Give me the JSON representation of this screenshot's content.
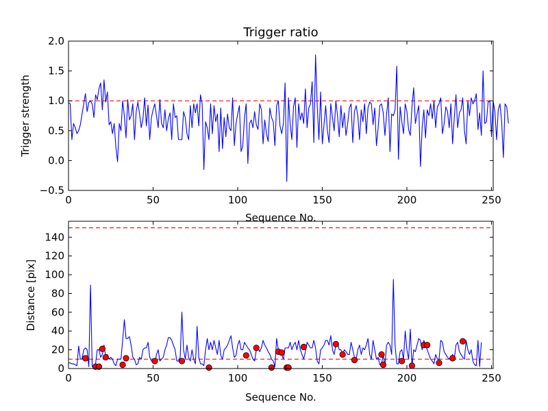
{
  "colors": {
    "line": "#0000ff",
    "threshold": "#ff0000",
    "marker": "#ff0000",
    "marker_edge": "#000000"
  },
  "chart_data": [
    {
      "type": "line",
      "title": "Trigger ratio",
      "xlabel": "Sequence No.",
      "ylabel": "Trigger strength",
      "xlim": [
        0,
        251
      ],
      "ylim": [
        -0.5,
        2.0
      ],
      "x_ticks": [
        0,
        50,
        100,
        150,
        200,
        250
      ],
      "x_tick_labels": [
        "0",
        "50",
        "100",
        "150",
        "200",
        "250"
      ],
      "y_ticks": [
        -0.5,
        0.0,
        0.5,
        1.0,
        1.5,
        2.0
      ],
      "y_tick_labels": [
        "−0.5",
        "0.0",
        "0.5",
        "1.0",
        "1.5",
        "2.0"
      ],
      "thresholds": [
        1.0
      ],
      "series": [
        {
          "name": "trigger strength",
          "x_start": 0,
          "values": [
            0.97,
            0.95,
            0.35,
            0.62,
            0.55,
            0.45,
            0.5,
            0.6,
            0.78,
            0.95,
            1.12,
            0.82,
            0.97,
            1.0,
            0.95,
            0.72,
            1.1,
            1.02,
            1.2,
            1.3,
            0.85,
            1.35,
            0.98,
            1.15,
            0.6,
            0.65,
            0.45,
            0.62,
            0.22,
            -0.02,
            0.62,
            0.5,
            1.0,
            0.75,
            0.38,
            1.02,
            0.68,
            0.75,
            0.95,
            0.35,
            0.82,
            0.98,
            0.78,
            0.55,
            0.7,
            1.05,
            0.58,
            0.93,
            0.35,
            0.72,
            0.85,
            0.95,
            0.75,
            0.55,
            1.02,
            0.62,
            0.55,
            0.85,
            0.5,
            0.7,
            0.8,
            0.35,
            0.95,
            0.72,
            0.75,
            0.35,
            0.35,
            0.35,
            0.82,
            0.72,
            0.45,
            0.35,
            0.92,
            0.55,
            0.95,
            0.8,
            0.95,
            0.58,
            1.1,
            0.95,
            -0.15,
            0.65,
            0.55,
            0.35,
            0.95,
            0.45,
            0.92,
            0.65,
            0.78,
            0.15,
            0.88,
            0.2,
            0.72,
            0.4,
            0.78,
            0.55,
            0.5,
            1.05,
            0.25,
            0.62,
            0.78,
            0.92,
            0.15,
            0.25,
            0.72,
            0.95,
            -0.05,
            0.62,
            0.68,
            0.55,
            0.82,
            0.6,
            0.52,
            0.95,
            0.85,
            0.28,
            0.68,
            0.45,
            0.32,
            0.88,
            0.72,
            0.65,
            0.25,
            0.92,
            1.0,
            0.58,
            0.45,
            0.62,
            1.3,
            -0.35,
            1.05,
            0.62,
            0.35,
            0.9,
            1.05,
            0.22,
            0.95,
            0.68,
            0.8,
            0.62,
            1.2,
            0.55,
            0.88,
            0.95,
            1.32,
            0.3,
            1.77,
            0.92,
            0.35,
            1.15,
            0.28,
            0.6,
            0.92,
            0.5,
            0.3,
            0.95,
            0.72,
            0.5,
            1.0,
            0.75,
            0.4,
            0.92,
            0.55,
            0.8,
            0.42,
            0.62,
            0.88,
            0.95,
            0.3,
            0.82,
            0.92,
            0.75,
            0.35,
            0.85,
            0.65,
            0.95,
            0.45,
            0.88,
            0.98,
            0.95,
            0.6,
            0.88,
            0.25,
            0.55,
            0.92,
            0.95,
            0.8,
            0.42,
            0.78,
            1.05,
            0.15,
            0.78,
            0.75,
            0.85,
            1.58,
            0.02,
            0.9,
            0.65,
            0.45,
            0.95,
            0.82,
            0.52,
            0.42,
            0.9,
            1.22,
            0.62,
            0.78,
            0.92,
            -0.1,
            0.55,
            0.85,
            0.38,
            0.85,
            0.75,
            0.95,
            0.7,
            1.0,
            0.55,
            0.9,
            0.95,
            1.05,
            0.45,
            0.62,
            0.9,
            0.82,
            0.55,
            0.95,
            0.28,
            0.72,
            1.1,
            0.55,
            0.8,
            0.85,
            1.05,
            0.5,
            0.28,
            1.0,
            0.75,
            1.05,
            0.95,
            1.0,
            1.12,
            0.52,
            0.8,
            0.42,
            1.5,
            0.62,
            0.65,
            0.98,
            1.0,
            0.4,
            1.0,
            0.82,
            0.35,
            0.85,
            0.95,
            0.65,
            0.05,
            0.95,
            0.9,
            0.62
          ]
        }
      ]
    },
    {
      "type": "line",
      "title": "",
      "xlabel": "Sequence No.",
      "ylabel": "Distance [pix]",
      "xlim": [
        0,
        251
      ],
      "ylim": [
        0,
        157
      ],
      "x_ticks": [
        0,
        50,
        100,
        150,
        200,
        250
      ],
      "x_tick_labels": [
        "0",
        "50",
        "100",
        "150",
        "200",
        "250"
      ],
      "y_ticks": [
        0,
        20,
        40,
        60,
        80,
        100,
        120,
        140
      ],
      "y_tick_labels": [
        "0",
        "20",
        "40",
        "60",
        "80",
        "100",
        "120",
        "140"
      ],
      "thresholds": [
        150,
        10
      ],
      "series": [
        {
          "name": "distance",
          "x_start": 0,
          "values": [
            6,
            6,
            5,
            5,
            4,
            3,
            24,
            10,
            10,
            20,
            22,
            20,
            2,
            89,
            2,
            2,
            5,
            20,
            20,
            12,
            15,
            25,
            12,
            15,
            10,
            12,
            10,
            5,
            3,
            10,
            10,
            10,
            30,
            52,
            32,
            32,
            34,
            25,
            12,
            10,
            4,
            5,
            12,
            10,
            20,
            22,
            22,
            28,
            12,
            8,
            8,
            5,
            15,
            20,
            8,
            10,
            12,
            20,
            25,
            33,
            33,
            30,
            25,
            20,
            8,
            8,
            12,
            60,
            20,
            10,
            25,
            12,
            8,
            20,
            10,
            5,
            45,
            12,
            5,
            5,
            3,
            20,
            32,
            20,
            28,
            20,
            30,
            22,
            15,
            30,
            14,
            10,
            20,
            22,
            25,
            30,
            35,
            22,
            12,
            14,
            25,
            30,
            20,
            20,
            28,
            25,
            22,
            20,
            15,
            10,
            8,
            20,
            22,
            18,
            22,
            30,
            25,
            22,
            18,
            15,
            10,
            8,
            2,
            32,
            20,
            18,
            15,
            10,
            22,
            22,
            22,
            28,
            20,
            25,
            28,
            20,
            30,
            20,
            15,
            10,
            18,
            28,
            25,
            22,
            22,
            30,
            22,
            8,
            5,
            20,
            22,
            25,
            30,
            30,
            25,
            35,
            20,
            15,
            25,
            28,
            20,
            20,
            15,
            20,
            18,
            15,
            15,
            28,
            20,
            12,
            10,
            20,
            25,
            15,
            22,
            20,
            25,
            32,
            15,
            10,
            30,
            20,
            10,
            12,
            4,
            5,
            14,
            4,
            25,
            28,
            25,
            15,
            95,
            25,
            5,
            5,
            18,
            20,
            10,
            40,
            20,
            10,
            42,
            2,
            20,
            18,
            25,
            32,
            30,
            20,
            30,
            25,
            20,
            15,
            10,
            8,
            5,
            15,
            10,
            10,
            30,
            28,
            18,
            15,
            12,
            10,
            12,
            15,
            10,
            25,
            28,
            18,
            15,
            12,
            10,
            30,
            20,
            15,
            20,
            8,
            4,
            3,
            30,
            2,
            28
          ]
        },
        {
          "name": "flagged",
          "type": "scatter",
          "x": [
            10,
            16,
            18,
            20,
            22,
            32,
            34,
            51,
            67,
            83,
            105,
            111,
            120,
            124,
            126,
            129,
            130,
            139,
            158,
            162,
            169,
            185,
            186,
            197,
            203,
            210,
            212,
            219,
            227,
            233
          ],
          "y": [
            11,
            2,
            2,
            21,
            12,
            4,
            11,
            8,
            8,
            1,
            14,
            22,
            1,
            18,
            17,
            1,
            1,
            23,
            26,
            15,
            9,
            15,
            4,
            8,
            3,
            25,
            25,
            6,
            11,
            29
          ]
        }
      ]
    }
  ]
}
